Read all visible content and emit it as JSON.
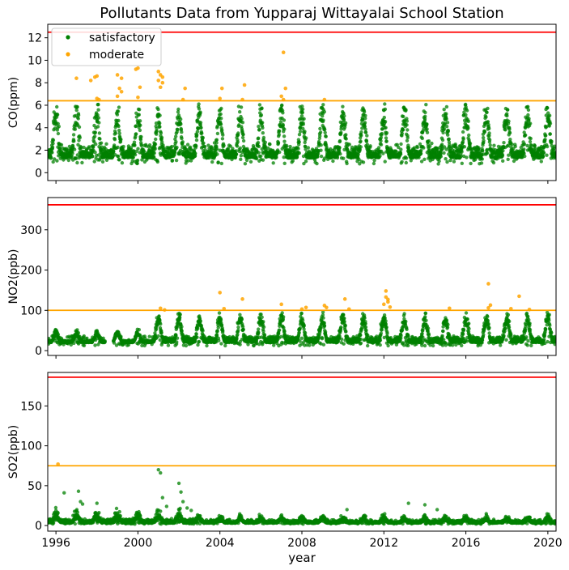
{
  "chart_data": {
    "type": "scatter",
    "title": "Pollutants Data from Yupparaj Wittayalai School Station",
    "xlabel": "year",
    "x_tick_labels": [
      "1996",
      "2000",
      "2004",
      "2008",
      "2012",
      "2016",
      "2020"
    ],
    "x_ticks": [
      1996,
      2000,
      2004,
      2008,
      2012,
      2016,
      2020
    ],
    "xlim": [
      1995.6,
      2020.4
    ],
    "legend": {
      "placement": "top-left",
      "entries": [
        "satisfactory",
        "moderate"
      ]
    },
    "colors": {
      "satisfactory": "#008000",
      "moderate": "#ffa500",
      "upper_threshold": "#ff0000",
      "moderate_threshold": "#ffa500"
    },
    "panels": [
      {
        "ylabel": "CO(ppm)",
        "ylim": [
          -0.7,
          13.2
        ],
        "y_ticks": [
          0,
          2,
          4,
          6,
          8,
          10,
          12
        ],
        "y_tick_labels": [
          "0",
          "2",
          "4",
          "6",
          "8",
          "10",
          "12"
        ],
        "thresholds": {
          "moderate": 6.4,
          "upper": 12.5
        },
        "satisfactory": {
          "baseline": 1.3,
          "peak_amplitude": 2.9,
          "noise": 0.9,
          "floor": 0.2
        },
        "moderate_points": [
          [
            1997.0,
            8.4
          ],
          [
            1997.7,
            8.2
          ],
          [
            1997.9,
            8.5
          ],
          [
            1998.0,
            8.6
          ],
          [
            1998.1,
            6.5
          ],
          [
            1998.0,
            6.6
          ],
          [
            1999.0,
            8.7
          ],
          [
            1999.2,
            8.4
          ],
          [
            1999.1,
            7.5
          ],
          [
            1999.2,
            7.2
          ],
          [
            1999.0,
            6.8
          ],
          [
            1999.9,
            9.2
          ],
          [
            2000.0,
            9.3
          ],
          [
            2000.1,
            7.6
          ],
          [
            2000.0,
            6.7
          ],
          [
            2001.0,
            9.0
          ],
          [
            2001.1,
            8.7
          ],
          [
            2001.2,
            8.5
          ],
          [
            2001.0,
            8.2
          ],
          [
            2001.2,
            8.0
          ],
          [
            2001.1,
            7.6
          ],
          [
            2002.3,
            7.5
          ],
          [
            2002.2,
            6.5
          ],
          [
            2004.1,
            7.5
          ],
          [
            2004.0,
            6.6
          ],
          [
            2005.2,
            7.8
          ],
          [
            2005.1,
            6.5
          ],
          [
            2007.1,
            10.7
          ],
          [
            2007.2,
            7.5
          ],
          [
            2007.0,
            6.8
          ],
          [
            2007.1,
            6.5
          ],
          [
            2009.1,
            6.5
          ]
        ]
      },
      {
        "ylabel": "NO2(ppb)",
        "ylim": [
          -12,
          380
        ],
        "y_ticks": [
          0,
          100,
          200,
          300
        ],
        "y_tick_labels": [
          "0",
          "100",
          "200",
          "300"
        ],
        "thresholds": {
          "moderate": 100,
          "upper": 362
        },
        "satisfactory": {
          "baseline": 20,
          "peak_amplitude": 45,
          "noise": 12,
          "floor": 3
        },
        "moderate_points": [
          [
            2001.1,
            105
          ],
          [
            2001.3,
            101
          ],
          [
            2004.0,
            144
          ],
          [
            2004.2,
            104
          ],
          [
            2005.1,
            128
          ],
          [
            2007.0,
            115
          ],
          [
            2008.0,
            103
          ],
          [
            2008.2,
            107
          ],
          [
            2009.1,
            112
          ],
          [
            2009.2,
            107
          ],
          [
            2010.1,
            128
          ],
          [
            2010.3,
            103
          ],
          [
            2012.1,
            148
          ],
          [
            2012.1,
            133
          ],
          [
            2012.2,
            127
          ],
          [
            2012.2,
            121
          ],
          [
            2012.0,
            115
          ],
          [
            2012.3,
            108
          ],
          [
            2015.2,
            105
          ],
          [
            2017.1,
            166
          ],
          [
            2017.2,
            113
          ],
          [
            2017.1,
            106
          ],
          [
            2018.2,
            104
          ],
          [
            2018.6,
            135
          ],
          [
            2019.1,
            102
          ]
        ]
      },
      {
        "ylabel": "SO2(ppb)",
        "ylim": [
          -7,
          192
        ],
        "y_ticks": [
          0,
          50,
          100,
          150
        ],
        "y_tick_labels": [
          "0",
          "50",
          "100",
          "150"
        ],
        "thresholds": {
          "moderate": 75,
          "upper": 186
        },
        "satisfactory": {
          "baseline": 3,
          "peak_amplitude": 4,
          "noise": 3,
          "floor": 0
        },
        "spike_points": [
          [
            1996.4,
            41
          ],
          [
            1997.1,
            43
          ],
          [
            1997.2,
            30
          ],
          [
            1997.3,
            27
          ],
          [
            1998.0,
            28
          ],
          [
            2001.0,
            70
          ],
          [
            2001.1,
            66
          ],
          [
            2001.2,
            35
          ],
          [
            2001.4,
            24
          ],
          [
            2002.0,
            53
          ],
          [
            2002.1,
            42
          ],
          [
            2002.2,
            30
          ],
          [
            2002.4,
            22
          ],
          [
            2002.6,
            19
          ],
          [
            2010.2,
            20
          ],
          [
            2013.2,
            28
          ],
          [
            2014.0,
            26
          ],
          [
            2014.6,
            20
          ]
        ],
        "moderate_points": [
          [
            1996.1,
            77
          ]
        ]
      }
    ]
  }
}
